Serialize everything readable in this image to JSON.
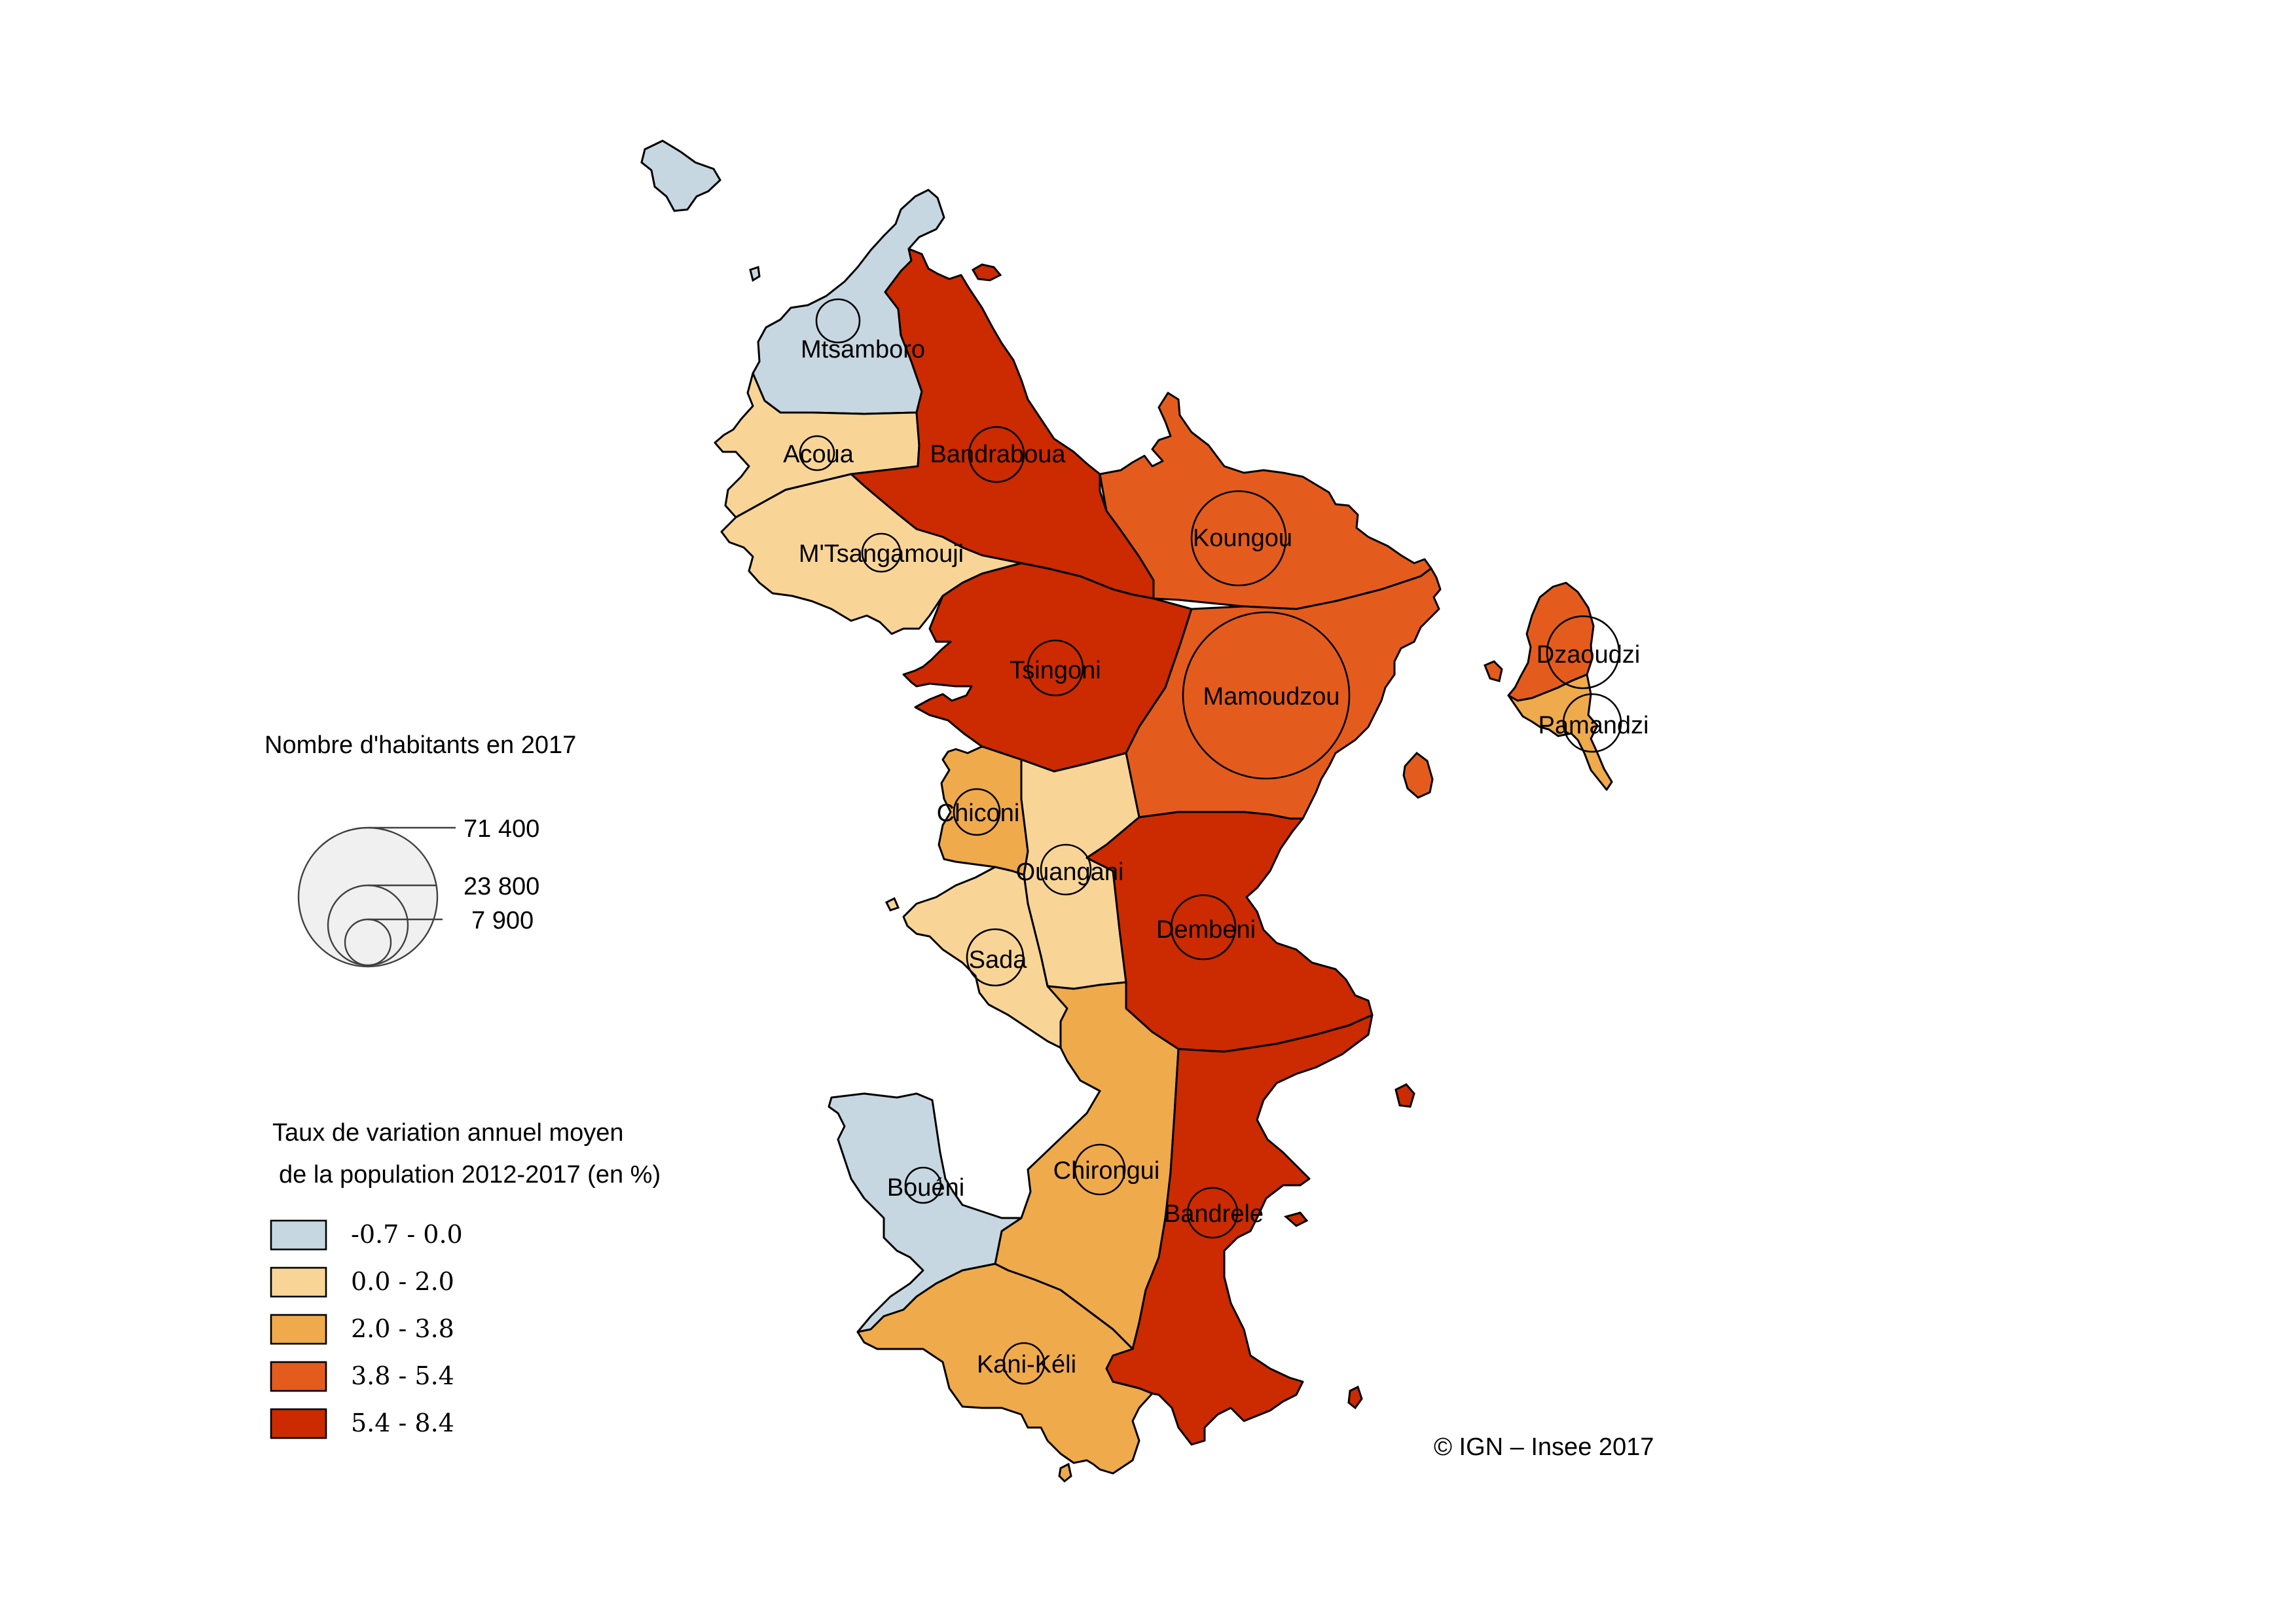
{
  "size_legend": {
    "title": "Nombre d'habitants en 2017",
    "values": [
      "71 400",
      "23 800",
      "7 900"
    ],
    "populations": [
      71400,
      23800,
      7900
    ]
  },
  "color_legend": {
    "title_line1": "Taux de variation annuel moyen",
    "title_line2": "de la population 2012-2017 (en %)",
    "classes": [
      {
        "label": "-0.7 - 0.0",
        "color": "#c6d7e1"
      },
      {
        "label": "0.0 - 2.0",
        "color": "#f8d597"
      },
      {
        "label": "2.0 - 3.8",
        "color": "#efaa4c"
      },
      {
        "label": "3.8 - 5.4",
        "color": "#e45c1d"
      },
      {
        "label": "5.4 - 8.4",
        "color": "#cc2a00"
      }
    ]
  },
  "communes": [
    {
      "name": "Mtsamboro",
      "label": "Mtsamboro",
      "class": 0
    },
    {
      "name": "Acoua",
      "label": "Acoua",
      "class": 1
    },
    {
      "name": "Bandraboua",
      "label": "Bandraboua",
      "class": 4
    },
    {
      "name": "M'Tsangamouji",
      "label": "M'Tsangamouji",
      "class": 1
    },
    {
      "name": "Koungou",
      "label": "Koungou",
      "class": 3
    },
    {
      "name": "Tsingoni",
      "label": "Tsingoni",
      "class": 4
    },
    {
      "name": "Mamoudzou",
      "label": "Mamoudzou",
      "class": 3
    },
    {
      "name": "Dzaoudzi",
      "label": "Dzaoudzi",
      "class": 3
    },
    {
      "name": "Pamandzi",
      "label": "Pamandzi",
      "class": 2
    },
    {
      "name": "Chiconi",
      "label": "Chiconi",
      "class": 2
    },
    {
      "name": "Ouangani",
      "label": "Ouangani",
      "class": 1
    },
    {
      "name": "Dembeni",
      "label": "Dembeni",
      "class": 4
    },
    {
      "name": "Sada",
      "label": "Sada",
      "class": 1
    },
    {
      "name": "Chirongui",
      "label": "Chirongui",
      "class": 2
    },
    {
      "name": "Bouéni",
      "label": "Bouéni",
      "class": 0
    },
    {
      "name": "Bandrele",
      "label": "Bandrele",
      "class": 4
    },
    {
      "name": "Kani-Kéli",
      "label": "Kani-Kéli",
      "class": 2
    }
  ],
  "credit": "© IGN – Insee 2017"
}
